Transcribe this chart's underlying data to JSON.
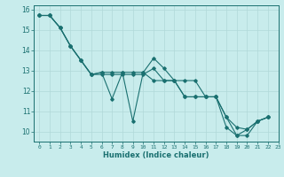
{
  "xlabel": "Humidex (Indice chaleur)",
  "bg_color": "#c8ecec",
  "grid_color": "#b0d8d8",
  "line_color": "#1a7070",
  "xlim": [
    -0.5,
    23
  ],
  "ylim": [
    9.5,
    16.2
  ],
  "yticks": [
    10,
    11,
    12,
    13,
    14,
    15,
    16
  ],
  "xticks": [
    0,
    1,
    2,
    3,
    4,
    5,
    6,
    7,
    8,
    9,
    10,
    11,
    12,
    13,
    14,
    15,
    16,
    17,
    18,
    19,
    20,
    21,
    22,
    23
  ],
  "xtick_labels": [
    "0",
    "1",
    "2",
    "3",
    "4",
    "5",
    "6",
    "7",
    "8",
    "9",
    "10",
    "11",
    "12",
    "13",
    "14",
    "15",
    "16",
    "17",
    "18",
    "19",
    "20",
    "21",
    "22",
    "23"
  ],
  "series": [
    {
      "x": [
        0,
        1,
        2,
        3,
        4,
        5,
        6,
        7,
        8,
        9,
        10,
        11,
        12,
        13,
        14,
        15,
        16,
        17,
        18,
        19,
        20,
        21,
        22
      ],
      "y": [
        15.7,
        15.7,
        15.1,
        14.2,
        13.5,
        12.8,
        12.8,
        12.8,
        12.8,
        12.8,
        12.8,
        13.1,
        12.5,
        12.5,
        11.7,
        11.7,
        11.7,
        11.7,
        10.2,
        9.8,
        10.1,
        10.5,
        10.7
      ]
    },
    {
      "x": [
        0,
        1,
        2,
        3,
        4,
        5,
        6,
        7,
        8,
        9,
        10,
        11,
        12,
        13,
        14,
        15,
        16,
        17,
        18,
        19,
        20,
        21,
        22
      ],
      "y": [
        15.7,
        15.7,
        15.1,
        14.2,
        13.5,
        12.8,
        12.9,
        11.6,
        12.9,
        10.5,
        12.9,
        13.6,
        13.1,
        12.5,
        12.5,
        12.5,
        11.7,
        11.7,
        10.7,
        10.2,
        10.1,
        10.5,
        10.7
      ]
    },
    {
      "x": [
        0,
        1,
        2,
        3,
        4,
        5,
        6,
        7,
        8,
        9,
        10,
        11,
        12,
        13,
        14,
        15,
        16,
        17,
        18,
        19,
        20,
        21,
        22
      ],
      "y": [
        15.7,
        15.7,
        15.1,
        14.2,
        13.5,
        12.8,
        12.9,
        12.9,
        12.9,
        12.9,
        12.9,
        12.5,
        12.5,
        12.5,
        11.7,
        11.7,
        11.7,
        11.7,
        10.7,
        9.8,
        9.8,
        10.5,
        10.7
      ]
    }
  ]
}
